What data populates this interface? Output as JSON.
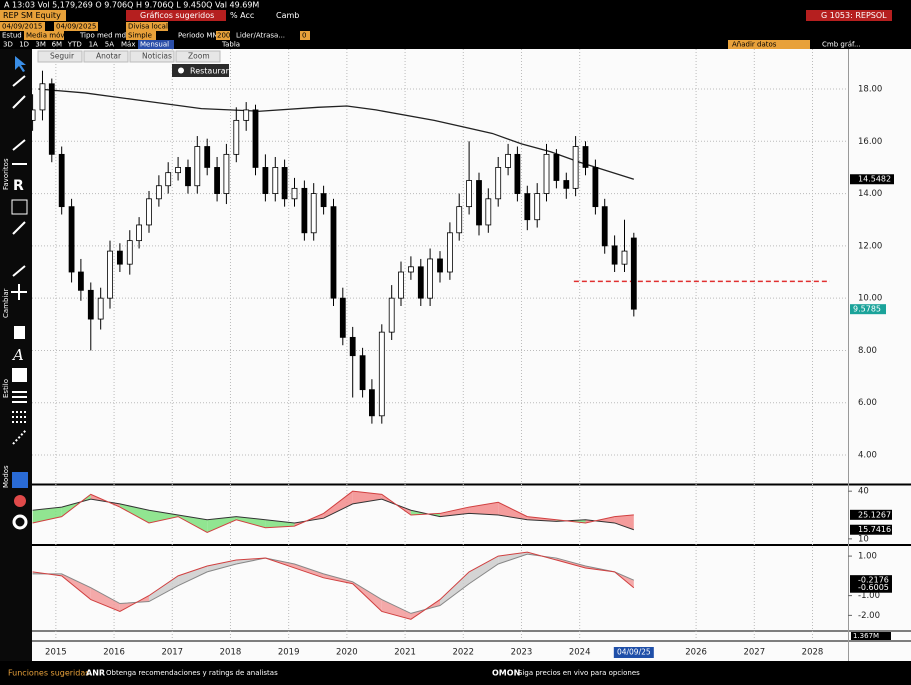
{
  "header": {
    "quote": "A 13:03 Vol 5,179,269 O 9.706Q H 9.706Q L 9.450Q Val 49.69M",
    "security": "REP SM Equity",
    "menu": "Gráficos sugeridos",
    "acc": "% Acc",
    "camb": "Camb",
    "page_id": "G 1053: REPSOL"
  },
  "controls": {
    "start_date": "04/09/2015",
    "end_date": "04/09/2025",
    "currency": "Divisa local",
    "study_label": "Estud",
    "study": "Media móvil",
    "ma_type_label": "Tipo med mdv",
    "ma_type": "Simple",
    "period_label": "Periodo MM",
    "period": "200",
    "lead_label": "Lider/Atrasa...",
    "lead": "0",
    "ranges": [
      "3D",
      "1D",
      "3M",
      "6M",
      "YTD",
      "1A",
      "5A",
      "Máx"
    ],
    "frequency": "Mensual",
    "table": "Tabla",
    "add_data": "Añadir datos",
    "change_chart": "Cmb gráf..."
  },
  "chart_tools": {
    "buttons": [
      "Seguir",
      "Anotar",
      "Noticias",
      "Zoom"
    ],
    "restore": "Restaurar"
  },
  "side_labels": [
    "Favoritos",
    "Cambiar",
    "Estilo",
    "Modos"
  ],
  "chart_data": [
    {
      "type": "candlestick",
      "x": [
        2014.6,
        2014.77,
        2014.93,
        2015.1,
        2015.27,
        2015.43,
        2015.6,
        2015.77,
        2015.93,
        2016.1,
        2016.27,
        2016.43,
        2016.6,
        2016.77,
        2016.93,
        2017.1,
        2017.27,
        2017.43,
        2017.6,
        2017.77,
        2017.93,
        2018.1,
        2018.27,
        2018.43,
        2018.6,
        2018.77,
        2018.93,
        2019.1,
        2019.27,
        2019.43,
        2019.6,
        2019.77,
        2019.93,
        2020.1,
        2020.27,
        2020.43,
        2020.6,
        2020.77,
        2020.93,
        2021.1,
        2021.27,
        2021.43,
        2021.6,
        2021.77,
        2021.93,
        2022.1,
        2022.27,
        2022.43,
        2022.6,
        2022.77,
        2022.93,
        2023.1,
        2023.27,
        2023.43,
        2023.6,
        2023.77,
        2023.93,
        2024.1,
        2024.27,
        2024.43,
        2024.6,
        2024.77,
        2024.93
      ],
      "open": [
        16.8,
        17.2,
        18.2,
        15.5,
        13.5,
        11.0,
        10.3,
        9.2,
        10.0,
        11.8,
        11.3,
        12.2,
        12.8,
        13.8,
        14.3,
        14.8,
        15.0,
        14.3,
        15.8,
        15.0,
        14.0,
        15.5,
        16.8,
        17.2,
        15.0,
        14.0,
        15.0,
        13.8,
        14.2,
        12.5,
        14.0,
        13.5,
        10.0,
        8.5,
        7.8,
        6.5,
        5.5,
        8.7,
        10.0,
        11.0,
        11.2,
        10.0,
        11.5,
        11.0,
        12.5,
        13.5,
        14.5,
        12.8,
        13.8,
        15.0,
        15.5,
        14.0,
        13.0,
        14.0,
        15.5,
        14.5,
        14.2,
        15.8,
        15.0,
        13.5,
        12.0,
        11.3,
        12.3
      ],
      "high": [
        17.8,
        18.7,
        18.4,
        15.8,
        13.8,
        11.5,
        10.6,
        10.4,
        12.2,
        12.1,
        12.6,
        13.1,
        14.1,
        14.7,
        15.2,
        15.4,
        15.3,
        16.2,
        16.1,
        15.4,
        15.9,
        17.3,
        17.5,
        17.4,
        15.5,
        15.4,
        15.3,
        14.6,
        14.5,
        14.4,
        14.3,
        13.8,
        10.4,
        8.9,
        8.1,
        6.9,
        9.0,
        10.5,
        11.4,
        11.6,
        11.5,
        11.9,
        11.8,
        12.9,
        14.0,
        16.0,
        14.8,
        14.2,
        15.4,
        15.9,
        15.8,
        14.3,
        14.4,
        15.9,
        15.7,
        14.8,
        16.2,
        16.0,
        15.3,
        13.8,
        12.4,
        13.0,
        12.5
      ],
      "low": [
        16.4,
        16.8,
        15.2,
        13.2,
        10.6,
        9.9,
        8.0,
        8.8,
        9.6,
        11.0,
        10.9,
        11.9,
        12.5,
        13.5,
        14.0,
        14.5,
        14.0,
        14.0,
        14.7,
        13.7,
        13.6,
        15.2,
        16.4,
        14.7,
        13.7,
        13.7,
        13.5,
        13.5,
        12.2,
        12.2,
        13.2,
        9.7,
        8.2,
        6.2,
        6.2,
        5.2,
        5.2,
        8.4,
        9.7,
        10.7,
        9.7,
        9.7,
        10.6,
        10.7,
        12.2,
        13.2,
        12.4,
        12.5,
        13.5,
        14.7,
        13.7,
        12.6,
        12.7,
        13.7,
        14.2,
        13.8,
        13.9,
        14.7,
        13.2,
        11.7,
        11.0,
        11.0,
        9.3
      ],
      "close": [
        17.2,
        18.2,
        15.5,
        13.5,
        11.0,
        10.3,
        9.2,
        10.0,
        11.8,
        11.3,
        12.2,
        12.8,
        13.8,
        14.3,
        14.8,
        15.0,
        14.3,
        15.8,
        15.0,
        14.0,
        15.5,
        16.8,
        17.2,
        15.0,
        14.0,
        15.0,
        13.8,
        14.2,
        12.5,
        14.0,
        13.5,
        10.0,
        8.5,
        7.8,
        6.5,
        5.5,
        8.7,
        10.0,
        11.0,
        11.2,
        10.0,
        11.5,
        11.0,
        12.5,
        13.5,
        14.5,
        12.8,
        13.8,
        15.0,
        15.5,
        14.0,
        13.0,
        14.0,
        15.5,
        14.5,
        14.2,
        15.8,
        15.0,
        13.5,
        12.0,
        11.3,
        11.8,
        9.5785
      ],
      "up_color": "#ffffff",
      "down_color": "#000000",
      "last_color": "#1aa39a",
      "overlays": [
        {
          "type": "line",
          "color": "#222222",
          "x": [
            2014.7,
            2015.5,
            2016.5,
            2017.5,
            2018.5,
            2019.5,
            2020.0,
            2020.5,
            2021.5,
            2022.5,
            2023.0,
            2023.5,
            2024.0,
            2024.5,
            2024.93
          ],
          "values": [
            18.0,
            17.85,
            17.55,
            17.25,
            17.15,
            17.3,
            17.35,
            17.2,
            16.8,
            16.3,
            15.9,
            15.6,
            15.2,
            14.85,
            14.5482
          ]
        }
      ],
      "reference_line": {
        "value": 10.64,
        "x_start": 2023.9,
        "x_end": 2028.3,
        "color": "#e03030"
      },
      "xlim": [
        2014.59,
        2028.61
      ],
      "ylim": [
        2.93,
        19.53
      ],
      "xticks": [
        2015,
        2016,
        2017,
        2018,
        2019,
        2020,
        2021,
        2022,
        2023,
        2024,
        2026,
        2027,
        2028
      ],
      "date_label": "04/09/25",
      "yticks": [
        {
          "value": 18,
          "label": "18.00"
        },
        {
          "value": 16,
          "label": "16.00"
        },
        {
          "value": 14,
          "label": "14.00"
        },
        {
          "value": 12,
          "label": "12.00"
        },
        {
          "value": 10,
          "label": "10.00"
        },
        {
          "value": 8,
          "label": "8.00"
        },
        {
          "value": 6,
          "label": "6.00"
        },
        {
          "value": 4,
          "label": "4.00"
        }
      ],
      "grid": true
    },
    {
      "type": "line",
      "x": [
        2014.6,
        2015.1,
        2015.6,
        2016.1,
        2016.6,
        2017.1,
        2017.6,
        2018.1,
        2018.6,
        2019.1,
        2019.6,
        2020.1,
        2020.6,
        2021.1,
        2021.6,
        2022.1,
        2022.6,
        2023.1,
        2023.6,
        2024.1,
        2024.6,
        2024.93
      ],
      "series": [
        {
          "color": "#333333",
          "values": [
            28,
            30,
            35,
            32,
            28,
            25,
            22,
            24,
            22,
            20,
            23,
            32,
            35,
            28,
            24,
            26,
            25,
            22,
            21,
            22,
            20,
            15.7416
          ]
        },
        {
          "color": "#d04040",
          "values": [
            20,
            24,
            38,
            30,
            20,
            24,
            14,
            22,
            17,
            18,
            26,
            40,
            38,
            25,
            26,
            30,
            33,
            24,
            22,
            20,
            24,
            25.1267
          ]
        }
      ],
      "fill_colors": [
        "#f28b8b",
        "#7ee07e"
      ],
      "xlim": [
        2014.59,
        2028.61
      ],
      "ylim": [
        7.39,
        43.26
      ],
      "yticks": [
        40,
        10
      ]
    },
    {
      "type": "line",
      "x": [
        2014.6,
        2015.1,
        2015.6,
        2016.1,
        2016.6,
        2017.1,
        2017.6,
        2018.1,
        2018.6,
        2019.1,
        2019.6,
        2020.1,
        2020.6,
        2021.1,
        2021.6,
        2022.1,
        2022.6,
        2023.1,
        2023.6,
        2024.1,
        2024.6,
        2024.93
      ],
      "series": [
        {
          "color": "#888888",
          "values": [
            0.1,
            0.1,
            -0.6,
            -1.4,
            -1.3,
            -0.5,
            0.2,
            0.6,
            0.9,
            0.6,
            0.1,
            -0.3,
            -1.2,
            -1.9,
            -1.5,
            -0.4,
            0.6,
            1.1,
            0.9,
            0.5,
            0.2,
            -0.2176
          ]
        },
        {
          "color": "#d04040",
          "values": [
            0.2,
            0.0,
            -1.2,
            -1.8,
            -1.0,
            0.0,
            0.5,
            0.8,
            0.9,
            0.4,
            -0.1,
            -0.4,
            -1.8,
            -2.2,
            -1.2,
            0.2,
            1.0,
            1.2,
            0.8,
            0.4,
            0.2,
            -0.6005
          ]
        }
      ],
      "fill_colors": [
        "#cccccc",
        "#f29a9a"
      ],
      "xlim": [
        2014.59,
        2028.61
      ],
      "ylim": [
        -2.74,
        1.46
      ],
      "yticks": [
        {
          "value": 1,
          "label": "1.00"
        },
        {
          "value": -1,
          "label": "-1.00"
        },
        {
          "value": -2,
          "label": "-2.00"
        }
      ]
    }
  ],
  "volume_panel": {
    "label": "1.367M"
  },
  "footer": {
    "title": "Funciones sugeridas",
    "items": [
      {
        "code": "ANR",
        "text": "Obtenga recomendaciones y ratings de analistas"
      },
      {
        "code": "OMON",
        "text": "Siga precios en vivo para opciones"
      }
    ]
  }
}
